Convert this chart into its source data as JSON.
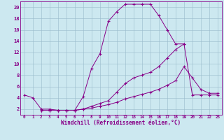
{
  "xlabel": "Windchill (Refroidissement éolien,°C)",
  "bg_color": "#cce8f0",
  "line_color": "#880088",
  "grid_color": "#99bbcc",
  "xlim": [
    -0.5,
    23.5
  ],
  "ylim": [
    1,
    21
  ],
  "xticks": [
    0,
    1,
    2,
    3,
    4,
    5,
    6,
    7,
    8,
    9,
    10,
    11,
    12,
    13,
    14,
    15,
    16,
    17,
    18,
    19,
    20,
    21,
    22,
    23
  ],
  "yticks": [
    2,
    4,
    6,
    8,
    10,
    12,
    14,
    16,
    18,
    20
  ],
  "line1_x": [
    0,
    1,
    2,
    3,
    4,
    5,
    6,
    7,
    8,
    9,
    10,
    11,
    12,
    13,
    14,
    15,
    16,
    17,
    18,
    19
  ],
  "line1_y": [
    4.5,
    4.0,
    2.0,
    2.0,
    1.8,
    1.8,
    1.8,
    4.2,
    9.2,
    11.8,
    17.5,
    19.2,
    20.5,
    20.5,
    20.5,
    20.5,
    18.5,
    16.0,
    13.5,
    13.5
  ],
  "line2_x": [
    2,
    3,
    4,
    5,
    6,
    7,
    8,
    9,
    10,
    11,
    12,
    13,
    14,
    15,
    16,
    17,
    18,
    19,
    20,
    21,
    22,
    23
  ],
  "line2_y": [
    1.8,
    1.8,
    1.8,
    1.8,
    1.8,
    2.0,
    2.5,
    3.0,
    3.5,
    5.0,
    6.5,
    7.5,
    8.0,
    8.5,
    9.5,
    11.0,
    12.5,
    13.5,
    4.5,
    4.5,
    4.5,
    4.5
  ],
  "line3_x": [
    2,
    3,
    4,
    5,
    6,
    7,
    8,
    9,
    10,
    11,
    12,
    13,
    14,
    15,
    16,
    17,
    18,
    19,
    20,
    21,
    22,
    23
  ],
  "line3_y": [
    1.8,
    1.8,
    1.8,
    1.8,
    1.8,
    2.0,
    2.2,
    2.5,
    2.8,
    3.2,
    3.8,
    4.2,
    4.6,
    5.0,
    5.5,
    6.2,
    7.0,
    9.5,
    7.5,
    5.5,
    4.8,
    4.8
  ]
}
